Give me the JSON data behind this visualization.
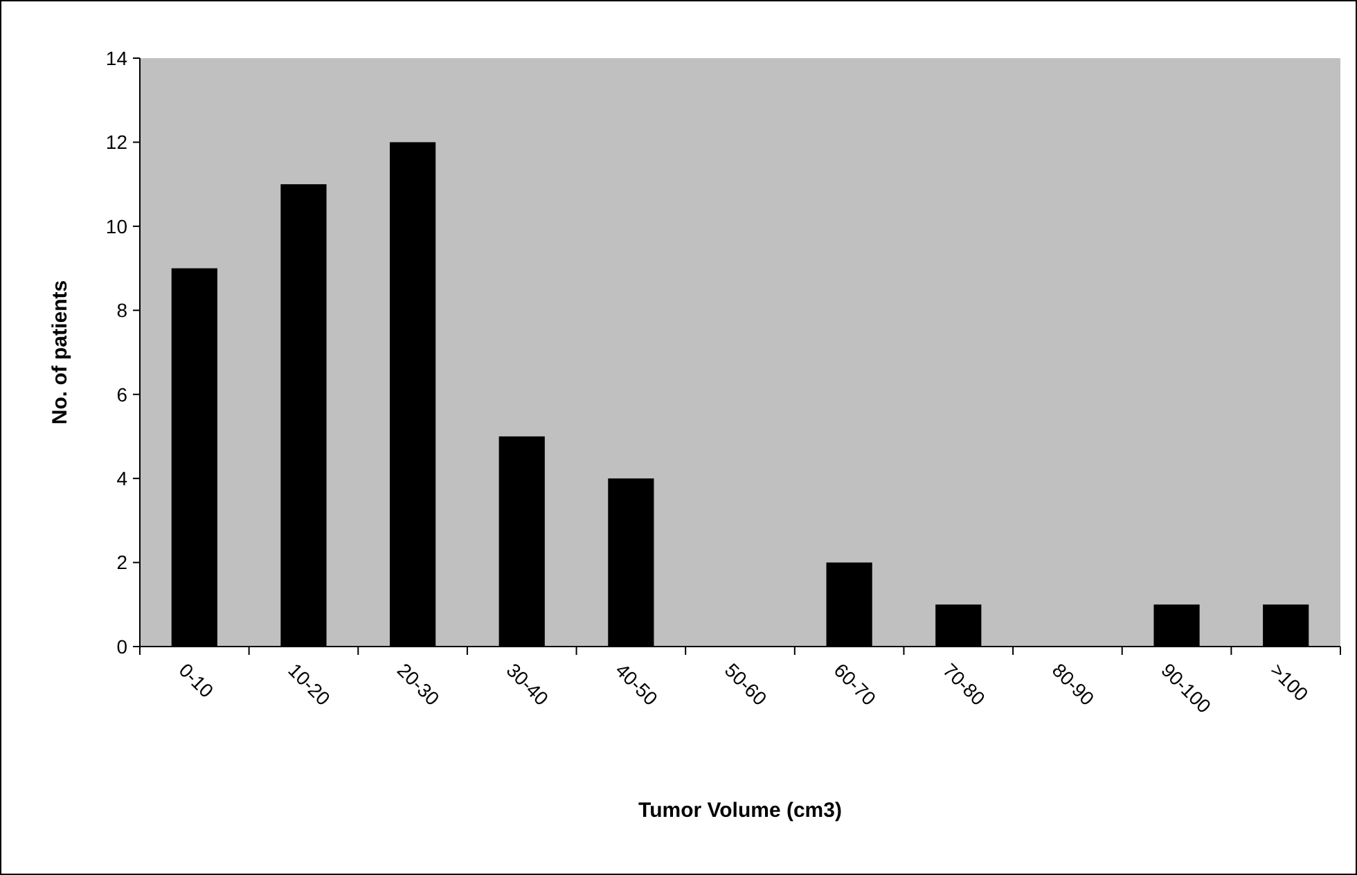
{
  "chart_data": {
    "type": "bar",
    "xlabel": "Tumor Volume (cm3)",
    "ylabel": "No. of patients",
    "categories": [
      "0-10",
      "10-20",
      "20-30",
      "30-40",
      "40-50",
      "50-60",
      "60-70",
      "70-80",
      "80-90",
      "90-100",
      ">100"
    ],
    "values": [
      9,
      11,
      12,
      5,
      4,
      0,
      2,
      1,
      0,
      1,
      1
    ],
    "color": "#000000",
    "ylim": [
      0,
      14
    ],
    "yticks": [
      0,
      2,
      4,
      6,
      8,
      10,
      12,
      14
    ]
  }
}
